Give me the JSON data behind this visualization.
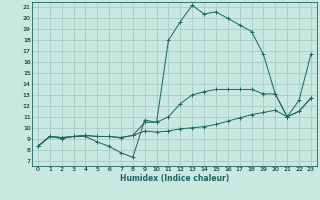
{
  "xlabel": "Humidex (Indice chaleur)",
  "bg_color": "#c8e8e0",
  "grid_color": "#aaccc4",
  "line_color": "#1a6660",
  "xlim": [
    -0.5,
    23.5
  ],
  "ylim": [
    6.5,
    21.5
  ],
  "xticks": [
    0,
    1,
    2,
    3,
    4,
    5,
    6,
    7,
    8,
    9,
    10,
    11,
    12,
    13,
    14,
    15,
    16,
    17,
    18,
    19,
    20,
    21,
    22,
    23
  ],
  "yticks": [
    7,
    8,
    9,
    10,
    11,
    12,
    13,
    14,
    15,
    16,
    17,
    18,
    19,
    20,
    21
  ],
  "line1_x": [
    0,
    1,
    2,
    3,
    4,
    5,
    6,
    7,
    8,
    9,
    10,
    11,
    12,
    13,
    14,
    15,
    16,
    17,
    18,
    19,
    20,
    21,
    22,
    23
  ],
  "line1_y": [
    8.3,
    9.2,
    9.0,
    9.2,
    9.2,
    8.7,
    8.3,
    7.7,
    7.3,
    10.7,
    10.5,
    18.0,
    19.7,
    21.2,
    20.4,
    20.6,
    20.0,
    19.4,
    18.8,
    16.7,
    13.1,
    11.0,
    12.5,
    16.7
  ],
  "line2_x": [
    0,
    1,
    2,
    3,
    4,
    5,
    6,
    7,
    8,
    9,
    10,
    11,
    12,
    13,
    14,
    15,
    16,
    17,
    18,
    19,
    20,
    21,
    22,
    23
  ],
  "line2_y": [
    8.3,
    9.2,
    9.1,
    9.2,
    9.3,
    9.2,
    9.2,
    9.1,
    9.3,
    10.5,
    10.5,
    11.0,
    12.2,
    13.0,
    13.3,
    13.5,
    13.5,
    13.5,
    13.5,
    13.1,
    13.1,
    11.0,
    11.5,
    12.7
  ],
  "line3_x": [
    0,
    1,
    2,
    3,
    4,
    5,
    6,
    7,
    8,
    9,
    10,
    11,
    12,
    13,
    14,
    15,
    16,
    17,
    18,
    19,
    20,
    21,
    22,
    23
  ],
  "line3_y": [
    8.3,
    9.2,
    9.1,
    9.2,
    9.3,
    9.2,
    9.2,
    9.1,
    9.3,
    9.7,
    9.6,
    9.7,
    9.9,
    10.0,
    10.1,
    10.3,
    10.6,
    10.9,
    11.2,
    11.4,
    11.6,
    11.0,
    11.5,
    12.7
  ]
}
